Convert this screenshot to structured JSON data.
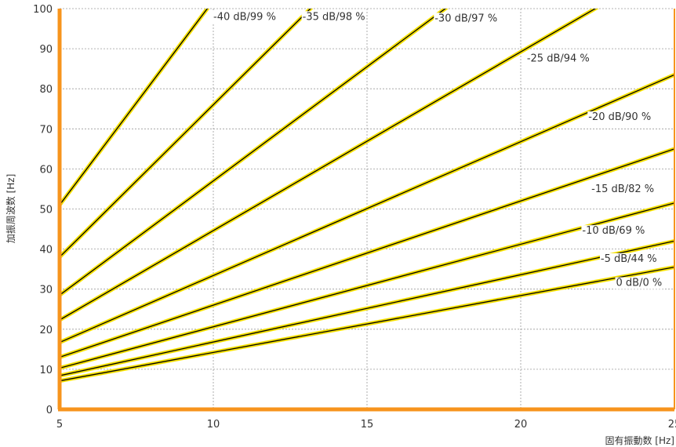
{
  "chart_data": {
    "type": "line",
    "title": "",
    "xlabel": "固有振動数 [Hz]",
    "ylabel": "加振周波数 [Hz]",
    "xlim": [
      5,
      25
    ],
    "ylim": [
      0,
      100
    ],
    "xticks": [
      5,
      10,
      15,
      20,
      25
    ],
    "yticks": [
      0,
      10,
      20,
      30,
      40,
      50,
      60,
      70,
      80,
      90,
      100
    ],
    "grid": true,
    "line_color": "#000000",
    "highlight_color": "#f5e000",
    "axis_color": "#f7941d",
    "series": [
      {
        "name": "-40 dB/99 %",
        "x": [
          5,
          10
        ],
        "y": [
          51,
          102
        ]
      },
      {
        "name": "-35 dB/98 %",
        "x": [
          5,
          15
        ],
        "y": [
          38,
          114
        ]
      },
      {
        "name": "-30 dB/97 %",
        "x": [
          5,
          20
        ],
        "y": [
          28.5,
          114
        ]
      },
      {
        "name": "-25 dB/94 %",
        "x": [
          5,
          25
        ],
        "y": [
          22.3,
          111.5
        ]
      },
      {
        "name": "-20 dB/90 %",
        "x": [
          5,
          25
        ],
        "y": [
          16.7,
          83.5
        ]
      },
      {
        "name": "-15 dB/82 %",
        "x": [
          5,
          25
        ],
        "y": [
          13,
          65
        ]
      },
      {
        "name": "-10 dB/69 %",
        "x": [
          5,
          25
        ],
        "y": [
          10.3,
          51.5
        ]
      },
      {
        "name": "-5 dB/44 %",
        "x": [
          5,
          25
        ],
        "y": [
          8.4,
          42
        ]
      },
      {
        "name": "0 dB/0 %",
        "x": [
          5,
          25
        ],
        "y": [
          7.1,
          35.5
        ]
      }
    ],
    "label_positions": [
      {
        "x": 10.0,
        "y": 97.2
      },
      {
        "x": 12.9,
        "y": 97.2
      },
      {
        "x": 17.2,
        "y": 96.8
      },
      {
        "x": 20.2,
        "y": 86.8
      },
      {
        "x": 22.2,
        "y": 72.2
      },
      {
        "x": 22.3,
        "y": 54.2
      },
      {
        "x": 22.0,
        "y": 43.8
      },
      {
        "x": 22.6,
        "y": 36.8
      },
      {
        "x": 23.1,
        "y": 30.8
      }
    ]
  }
}
